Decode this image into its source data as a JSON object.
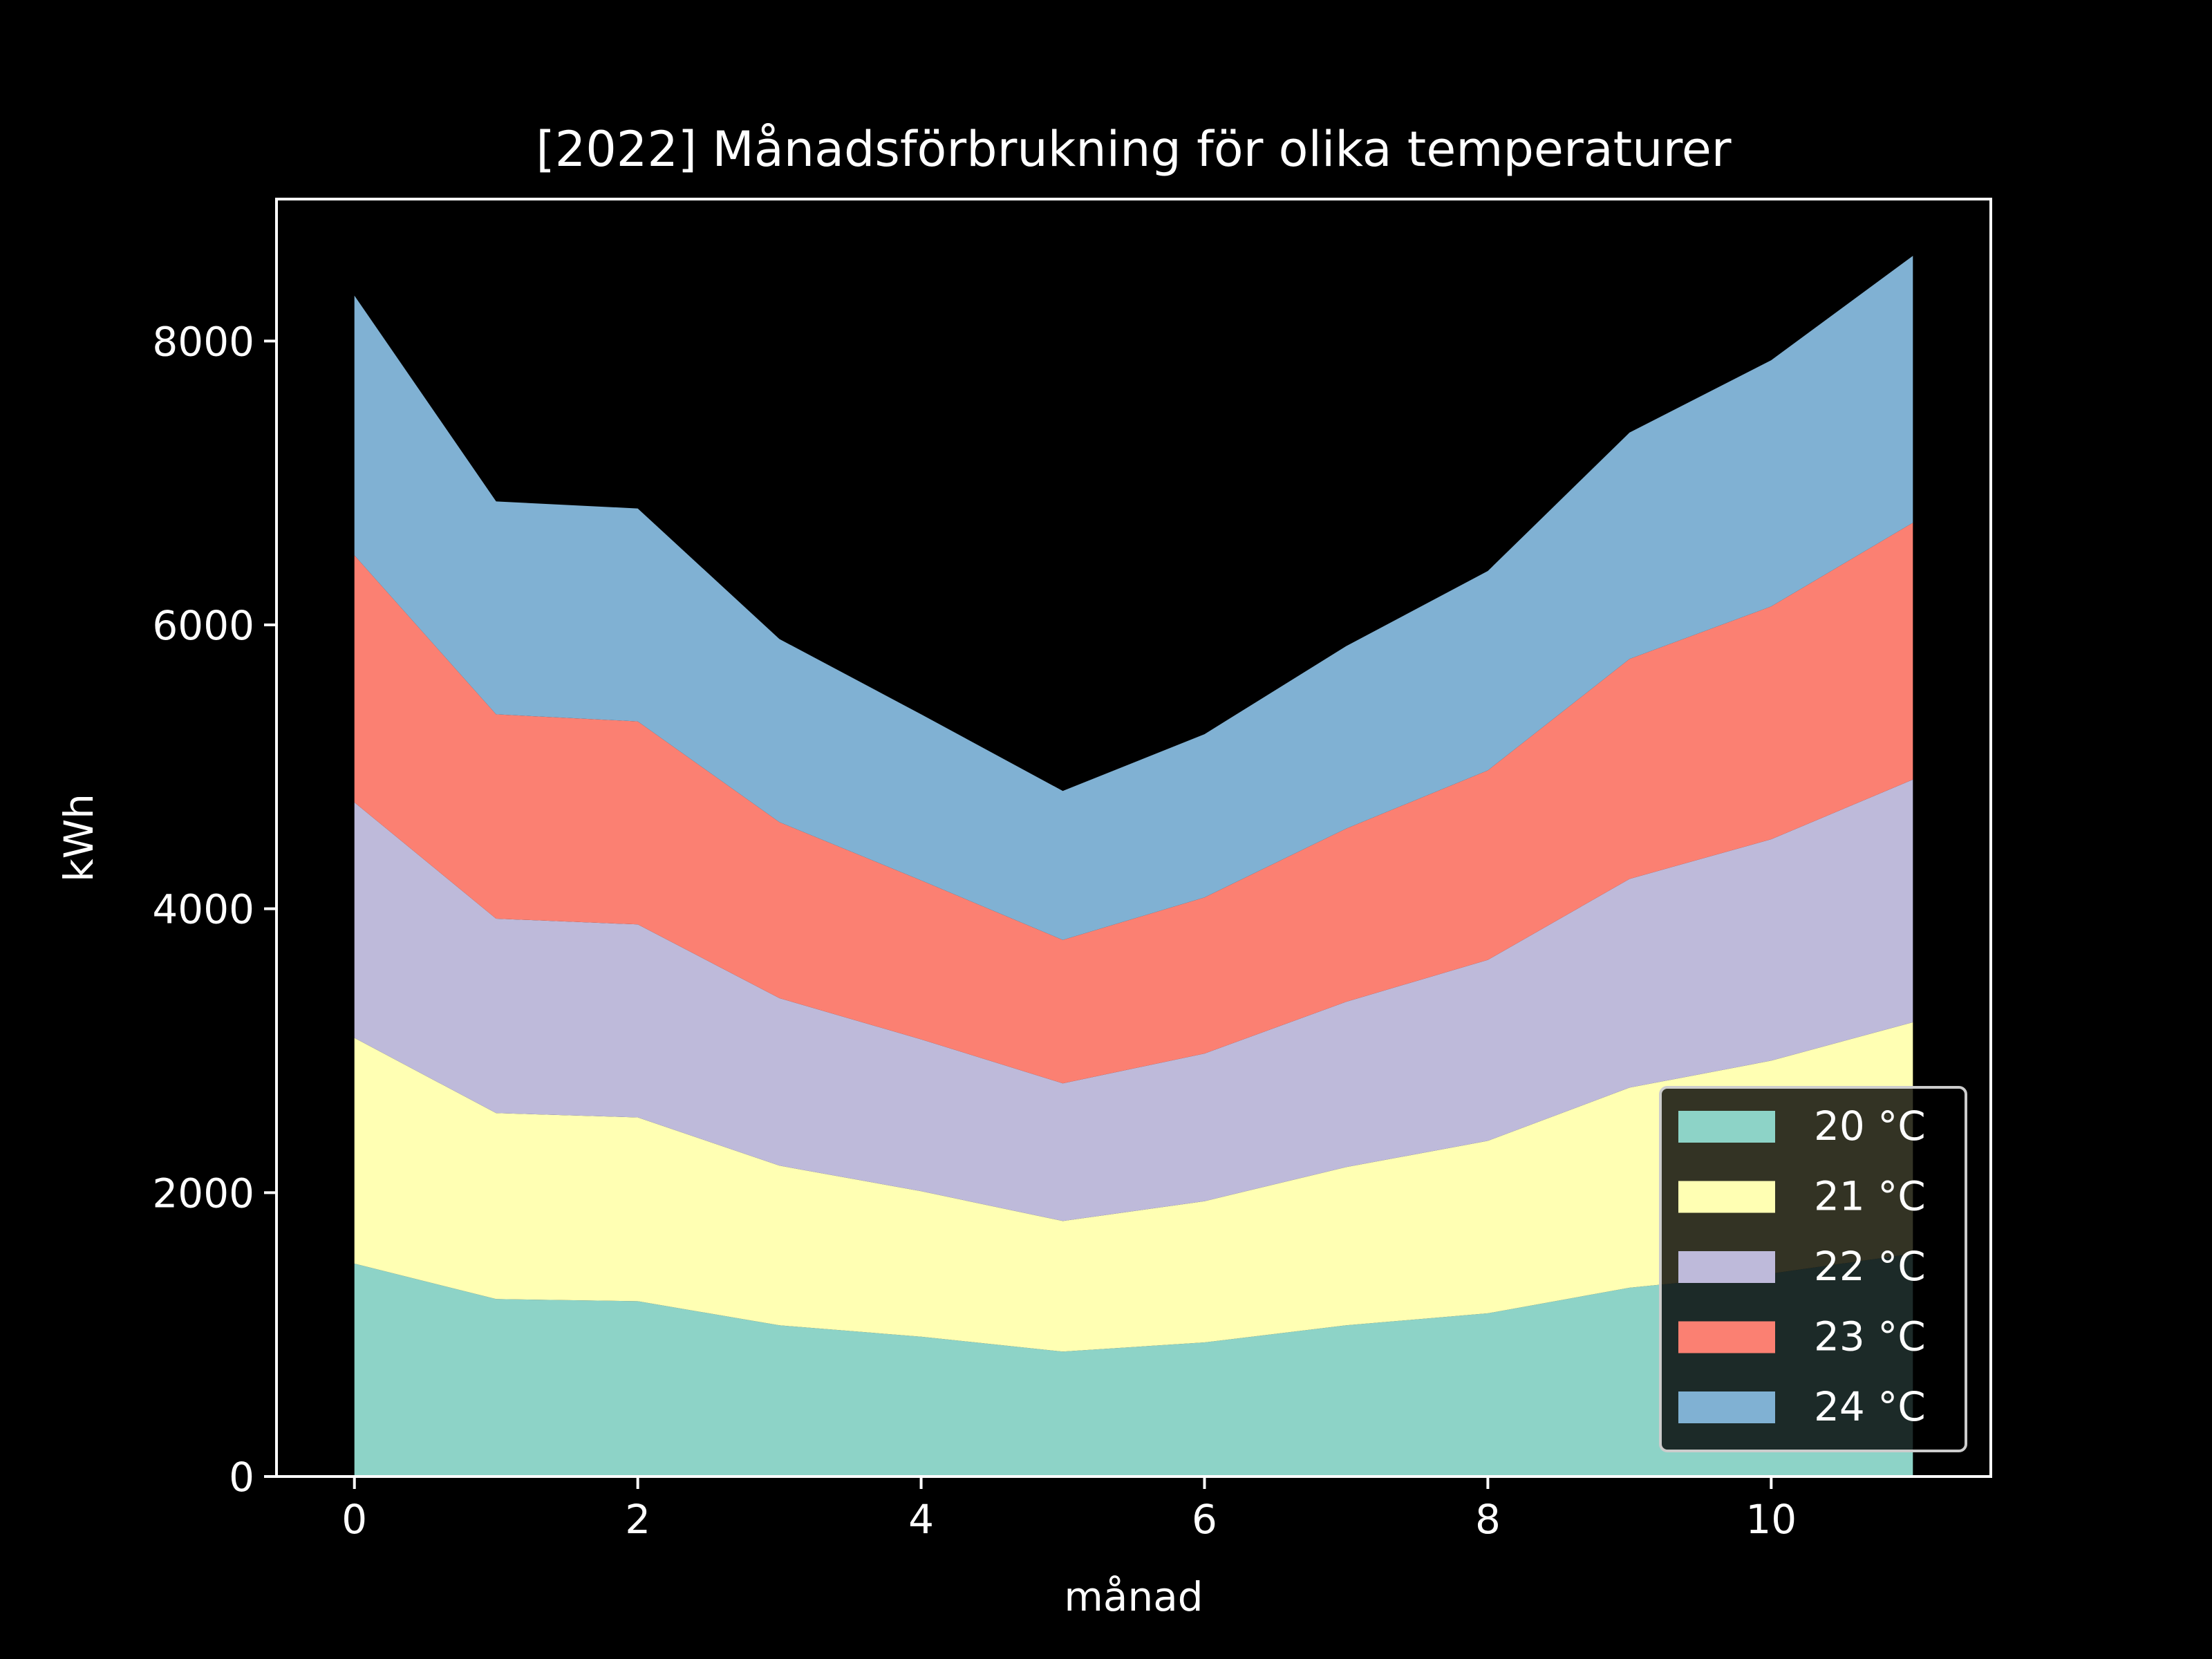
{
  "chart_data": {
    "type": "area",
    "stacked": true,
    "title": "[2022] Månadsförbrukning för olika temperaturer",
    "xlabel": "månad",
    "ylabel": "kWh",
    "x": [
      0,
      1,
      2,
      3,
      4,
      5,
      6,
      7,
      8,
      9,
      10,
      11
    ],
    "xlim": [
      -0.55,
      11.55
    ],
    "ylim": [
      0,
      9000
    ],
    "xticks": [
      0,
      2,
      4,
      6,
      8,
      10
    ],
    "xtick_labels": [
      "0",
      "2",
      "4",
      "6",
      "8",
      "10"
    ],
    "yticks": [
      0,
      2000,
      4000,
      6000,
      8000
    ],
    "ytick_labels": [
      "0",
      "2000",
      "4000",
      "6000",
      "8000"
    ],
    "grid": false,
    "legend_position": "lower-right",
    "series": [
      {
        "name": "20 °C",
        "color": "#8dd3c7",
        "values": [
          1500,
          1250,
          1235,
          1065,
          985,
          880,
          945,
          1065,
          1150,
          1330,
          1430,
          1570
        ]
      },
      {
        "name": "21 °C",
        "color": "#ffffb3",
        "values": [
          1590,
          1310,
          1295,
          1125,
          1025,
          920,
          995,
          1115,
          1215,
          1410,
          1500,
          1630
        ]
      },
      {
        "name": "22 °C",
        "color": "#bebada",
        "values": [
          1660,
          1370,
          1360,
          1180,
          1070,
          970,
          1040,
          1165,
          1275,
          1470,
          1560,
          1710
        ]
      },
      {
        "name": "23 °C",
        "color": "#fb8072",
        "values": [
          1740,
          1440,
          1430,
          1240,
          1120,
          1010,
          1100,
          1220,
          1335,
          1550,
          1640,
          1810
        ]
      },
      {
        "name": "24 °C",
        "color": "#80b1d3",
        "values": [
          1830,
          1500,
          1500,
          1290,
          1170,
          1050,
          1150,
          1285,
          1405,
          1595,
          1735,
          1880
        ]
      }
    ]
  }
}
